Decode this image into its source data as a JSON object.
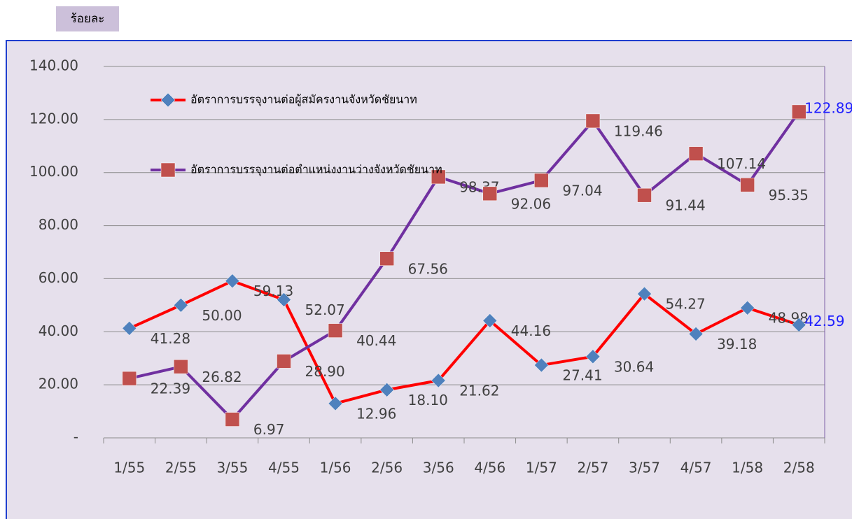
{
  "chart_data": {
    "type": "line",
    "y_unit": "ร้อยละ",
    "categories": [
      "1/55",
      "2/55",
      "3/55",
      "4/55",
      "1/56",
      "2/56",
      "3/56",
      "4/56",
      "1/57",
      "2/57",
      "3/57",
      "4/57",
      "1/58",
      "2/58"
    ],
    "series": [
      {
        "name": "อัตราการบรรจุงานต่อผู้สมัครงานจังหวัดชัยนาท",
        "color": "#ff0000",
        "marker": "diamond",
        "marker_color": "#4f81bd",
        "values": [
          41.28,
          50,
          59.13,
          52.07,
          12.96,
          18.1,
          21.62,
          44.16,
          27.41,
          30.64,
          54.27,
          39.18,
          48.98,
          42.59
        ],
        "value_labels": [
          "41.28",
          "50.00",
          "59.13",
          "52.07",
          "12.96",
          "18.10",
          "21.62",
          "44.16",
          "27.41",
          "30.64",
          "54.27",
          "39.18",
          "48.98",
          "42.59"
        ]
      },
      {
        "name": "อัตราการบรรจุงานต่อตำแหน่งงานว่างจังหวัดชัยนาท",
        "color": "#7030a0",
        "marker": "square",
        "marker_color": "#c0504d",
        "values": [
          22.39,
          26.82,
          6.97,
          28.9,
          40.44,
          67.56,
          98.37,
          92.06,
          97.04,
          119.46,
          91.44,
          107.14,
          95.35,
          122.89
        ],
        "value_labels": [
          "22.39",
          "26.82",
          "6.97",
          "28.90",
          "40.44",
          "67.56",
          "98.37",
          "92.06",
          "97.04",
          "119.46",
          "91.44",
          "107.14",
          "95.35",
          "122.89"
        ]
      }
    ],
    "ylim": [
      0,
      140
    ],
    "yticks": [
      {
        "value": 0,
        "label": "-"
      },
      {
        "value": 20,
        "label": "20.00"
      },
      {
        "value": 40,
        "label": "40.00"
      },
      {
        "value": 60,
        "label": "60.00"
      },
      {
        "value": 80,
        "label": "80.00"
      },
      {
        "value": 100,
        "label": "100.00"
      },
      {
        "value": 120,
        "label": "120.00"
      },
      {
        "value": 140,
        "label": "140.00"
      }
    ],
    "grid": true
  }
}
